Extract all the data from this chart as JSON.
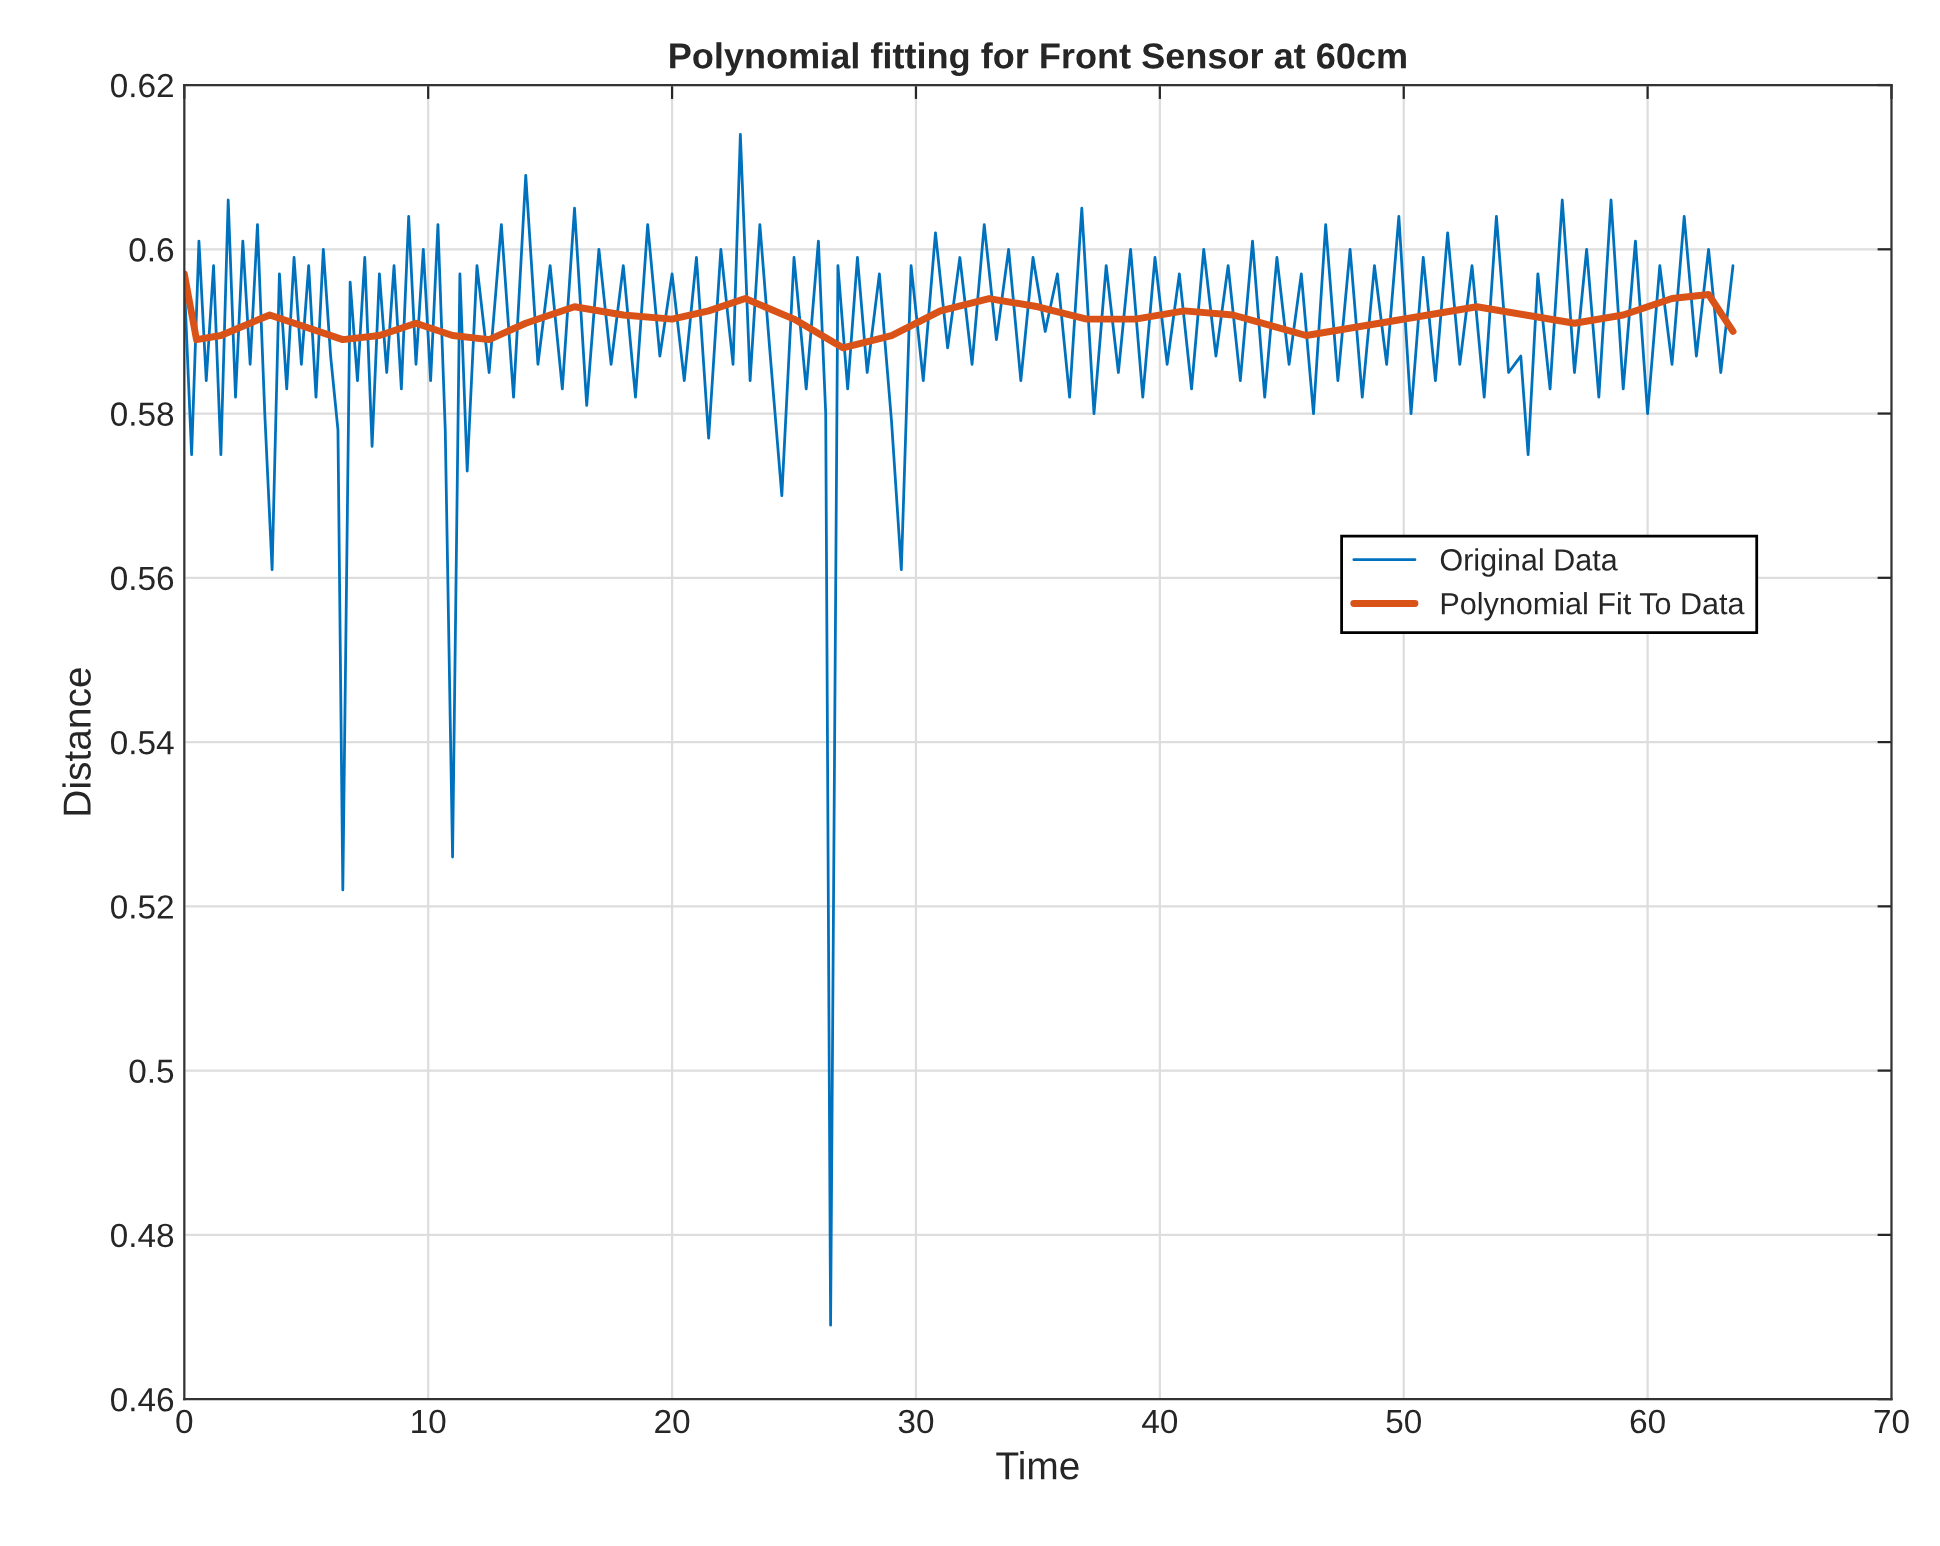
{
  "chart_data": {
    "type": "line",
    "title": "Polynomial fitting for Front Sensor at 60cm",
    "xlabel": "Time",
    "ylabel": "Distance",
    "xlim": [
      0,
      70
    ],
    "ylim": [
      0.46,
      0.62
    ],
    "xticks": [
      0,
      10,
      20,
      30,
      40,
      50,
      60,
      70
    ],
    "yticks": [
      0.46,
      0.48,
      {
        "value": 0.5,
        "label": "0.5"
      },
      0.52,
      0.54,
      0.56,
      0.58,
      {
        "value": 0.6,
        "label": "0.6"
      },
      0.62
    ],
    "grid": true,
    "legend": "right",
    "series": [
      {
        "name": "Original Data",
        "color": "#0072bd",
        "x": [
          0,
          0.3,
          0.6,
          0.9,
          1.2,
          1.5,
          1.8,
          2.1,
          2.4,
          2.7,
          3.0,
          3.3,
          3.6,
          3.9,
          4.2,
          4.5,
          4.8,
          5.1,
          5.4,
          5.7,
          6.0,
          6.3,
          6.5,
          6.8,
          7.1,
          7.4,
          7.7,
          8.0,
          8.3,
          8.6,
          8.9,
          9.2,
          9.5,
          9.8,
          10.1,
          10.4,
          10.7,
          11.0,
          11.3,
          11.6,
          12.0,
          12.5,
          13.0,
          13.5,
          14.0,
          14.5,
          15.0,
          15.5,
          16.0,
          16.5,
          17.0,
          17.5,
          18.0,
          18.5,
          19.0,
          19.5,
          20.0,
          20.5,
          21.0,
          21.5,
          22.0,
          22.5,
          22.8,
          23.2,
          23.6,
          24.0,
          24.5,
          25.0,
          25.5,
          26.0,
          26.3,
          26.5,
          26.8,
          27.2,
          27.6,
          28.0,
          28.5,
          29.0,
          29.4,
          29.8,
          30.3,
          30.8,
          31.3,
          31.8,
          32.3,
          32.8,
          33.3,
          33.8,
          34.3,
          34.8,
          35.3,
          35.8,
          36.3,
          36.8,
          37.3,
          37.8,
          38.3,
          38.8,
          39.3,
          39.8,
          40.3,
          40.8,
          41.3,
          41.8,
          42.3,
          42.8,
          43.3,
          43.8,
          44.3,
          44.8,
          45.3,
          45.8,
          46.3,
          46.8,
          47.3,
          47.8,
          48.3,
          48.8,
          49.3,
          49.8,
          50.3,
          50.8,
          51.3,
          51.8,
          52.3,
          52.8,
          53.3,
          53.8,
          54.3,
          54.8,
          55.1,
          55.5,
          56.0,
          56.5,
          57.0,
          57.5,
          58.0,
          58.5,
          59.0,
          59.5,
          60.0,
          60.5,
          61.0,
          61.5,
          62.0,
          62.5,
          63.0,
          63.5
        ],
        "values": [
          0.596,
          0.575,
          0.601,
          0.584,
          0.598,
          0.575,
          0.606,
          0.582,
          0.601,
          0.586,
          0.603,
          0.58,
          0.561,
          0.597,
          0.583,
          0.599,
          0.586,
          0.598,
          0.582,
          0.6,
          0.587,
          0.578,
          0.522,
          0.596,
          0.584,
          0.599,
          0.576,
          0.597,
          0.585,
          0.598,
          0.583,
          0.604,
          0.586,
          0.6,
          0.584,
          0.603,
          0.578,
          0.526,
          0.597,
          0.573,
          0.598,
          0.585,
          0.603,
          0.582,
          0.609,
          0.586,
          0.598,
          0.583,
          0.605,
          0.581,
          0.6,
          0.586,
          0.598,
          0.582,
          0.603,
          0.587,
          0.597,
          0.584,
          0.599,
          0.577,
          0.6,
          0.586,
          0.614,
          0.584,
          0.603,
          0.588,
          0.57,
          0.599,
          0.583,
          0.601,
          0.58,
          0.469,
          0.598,
          0.583,
          0.599,
          0.585,
          0.597,
          0.579,
          0.561,
          0.598,
          0.584,
          0.602,
          0.588,
          0.599,
          0.586,
          0.603,
          0.589,
          0.6,
          0.584,
          0.599,
          0.59,
          0.597,
          0.582,
          0.605,
          0.58,
          0.598,
          0.585,
          0.6,
          0.582,
          0.599,
          0.586,
          0.597,
          0.583,
          0.6,
          0.587,
          0.598,
          0.584,
          0.601,
          0.582,
          0.599,
          0.586,
          0.597,
          0.58,
          0.603,
          0.584,
          0.6,
          0.582,
          0.598,
          0.586,
          0.604,
          0.58,
          0.599,
          0.584,
          0.602,
          0.586,
          0.598,
          0.582,
          0.604,
          0.585,
          0.587,
          0.575,
          0.597,
          0.583,
          0.606,
          0.585,
          0.6,
          0.582,
          0.606,
          0.583,
          0.601,
          0.58,
          0.598,
          0.586,
          0.604,
          0.587,
          0.6,
          0.585,
          0.598
        ]
      },
      {
        "name": "Polynomial Fit To Data",
        "color": "#d95319",
        "x": [
          0,
          0.5,
          1.5,
          3.5,
          5,
          6.5,
          8,
          9.5,
          11,
          12.5,
          14,
          16,
          18,
          20,
          21.5,
          23,
          25,
          27,
          29,
          31,
          33,
          35,
          37,
          39,
          41,
          43,
          46,
          49,
          51,
          53,
          55,
          57,
          59,
          61,
          62.5,
          63.5
        ],
        "values": [
          0.597,
          0.589,
          0.5895,
          0.592,
          0.5905,
          0.589,
          0.5895,
          0.591,
          0.5895,
          0.589,
          0.591,
          0.593,
          0.592,
          0.5915,
          0.5925,
          0.594,
          0.5915,
          0.588,
          0.5895,
          0.5925,
          0.594,
          0.593,
          0.5915,
          0.5915,
          0.5925,
          0.592,
          0.5895,
          0.591,
          0.592,
          0.593,
          0.592,
          0.591,
          0.592,
          0.594,
          0.5945,
          0.59
        ]
      }
    ]
  }
}
